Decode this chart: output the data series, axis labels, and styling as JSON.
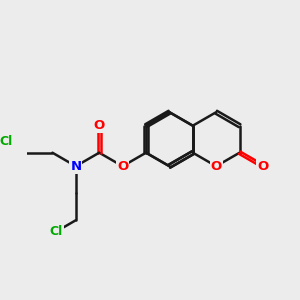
{
  "background_color": "#ececec",
  "bond_color": "#1a1a1a",
  "N_color": "#0000ff",
  "O_color": "#ff0000",
  "Cl_color": "#00aa00",
  "bond_width": 1.8,
  "dbo": 0.018,
  "figsize": [
    3.0,
    3.0
  ],
  "dpi": 100,
  "xlim": [
    0.0,
    3.0
  ],
  "ylim": [
    0.0,
    3.0
  ],
  "bl": 0.3,
  "label_fontsize": 9.5
}
